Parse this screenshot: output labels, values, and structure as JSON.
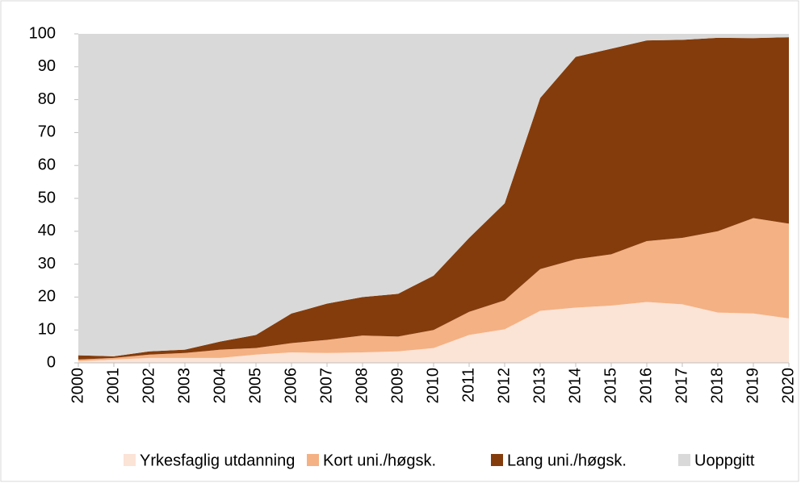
{
  "chart_data": {
    "type": "stacked_area",
    "x": [
      2000,
      2001,
      2002,
      2003,
      2004,
      2005,
      2006,
      2007,
      2008,
      2009,
      2010,
      2011,
      2012,
      2013,
      2014,
      2015,
      2016,
      2017,
      2018,
      2019,
      2020
    ],
    "xlim": [
      2000,
      2020
    ],
    "xticks": [
      2000,
      2001,
      2002,
      2003,
      2004,
      2005,
      2006,
      2007,
      2008,
      2009,
      2010,
      2011,
      2012,
      2013,
      2014,
      2015,
      2016,
      2017,
      2018,
      2019,
      2020
    ],
    "ylim": [
      0,
      100
    ],
    "yticks": [
      0,
      10,
      20,
      30,
      40,
      50,
      60,
      70,
      80,
      90,
      100
    ],
    "legend": "bottom",
    "series": [
      {
        "name": "Yrkesfaglig utdanning",
        "color": "#fbe3d6",
        "values": [
          0.5,
          1,
          1.5,
          1.5,
          1.5,
          2.5,
          3.2,
          3,
          3.2,
          3.5,
          4.5,
          8.5,
          10.2,
          15.8,
          16.8,
          17.4,
          18.5,
          17.8,
          15.3,
          15,
          13.5
        ]
      },
      {
        "name": "Kort uni./høgsk.",
        "color": "#f4b183",
        "values": [
          0.5,
          0.5,
          1,
          1.5,
          2.5,
          2,
          2.8,
          4,
          5.1,
          4.5,
          5.5,
          7,
          8.8,
          12.7,
          14.7,
          15.6,
          18.5,
          20.2,
          24.7,
          29,
          28.8
        ]
      },
      {
        "name": "Lang uni./høgsk.",
        "color": "#843c0c",
        "values": [
          1.3,
          0.5,
          1,
          1,
          2.5,
          4,
          9,
          11,
          11.7,
          13,
          16.5,
          22.5,
          29.5,
          52,
          61.5,
          62.5,
          61,
          60.2,
          58.8,
          54.7,
          56.7
        ]
      },
      {
        "name": "Uoppgitt",
        "color": "#d9d9d9",
        "values": [
          97.7,
          98,
          96.5,
          96,
          93.5,
          91.5,
          85,
          82,
          80,
          79,
          73.5,
          62,
          51.5,
          19.5,
          7,
          4.5,
          2,
          1.8,
          1.2,
          1.3,
          1
        ]
      }
    ]
  }
}
